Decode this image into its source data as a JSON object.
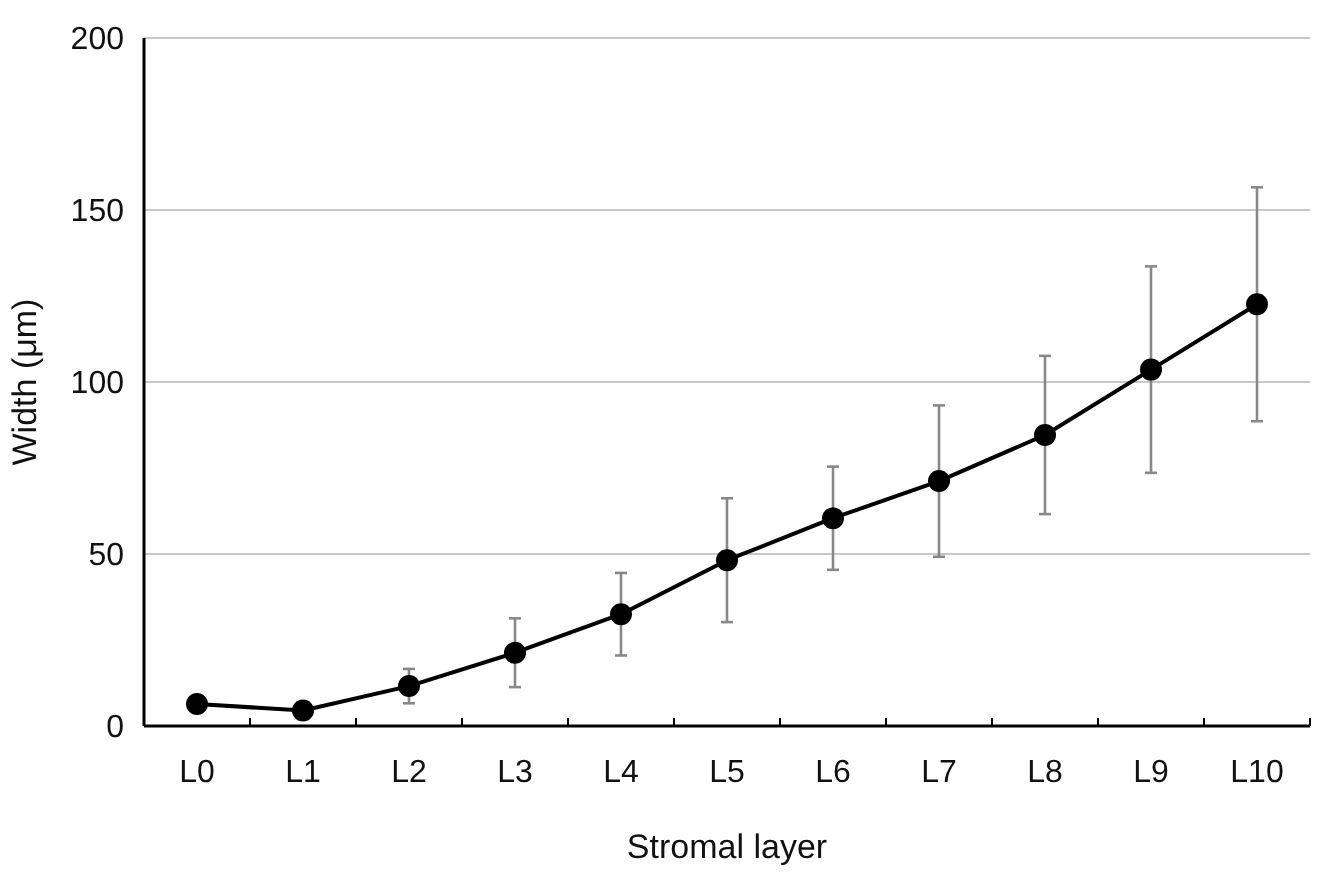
{
  "chart_data": {
    "type": "line",
    "xlabel": "Stromal layer",
    "ylabel": "Width (μm)",
    "categories": [
      "L0",
      "L1",
      "L2",
      "L3",
      "L4",
      "L5",
      "L6",
      "L7",
      "L8",
      "L9",
      "L10"
    ],
    "series": [
      {
        "color": "#000000",
        "values": [
          6.4,
          4.5,
          11.6,
          21.3,
          32.5,
          48.2,
          60.4,
          71.2,
          84.6,
          103.6,
          122.6
        ],
        "errors": [
          null,
          null,
          5,
          10,
          12,
          18,
          15,
          22,
          23,
          30,
          34
        ]
      }
    ],
    "ylim": [
      0,
      200
    ],
    "yticks": [
      0,
      50,
      100,
      150,
      200
    ],
    "grid": "y",
    "marker": "circle",
    "line_style": "solid"
  }
}
